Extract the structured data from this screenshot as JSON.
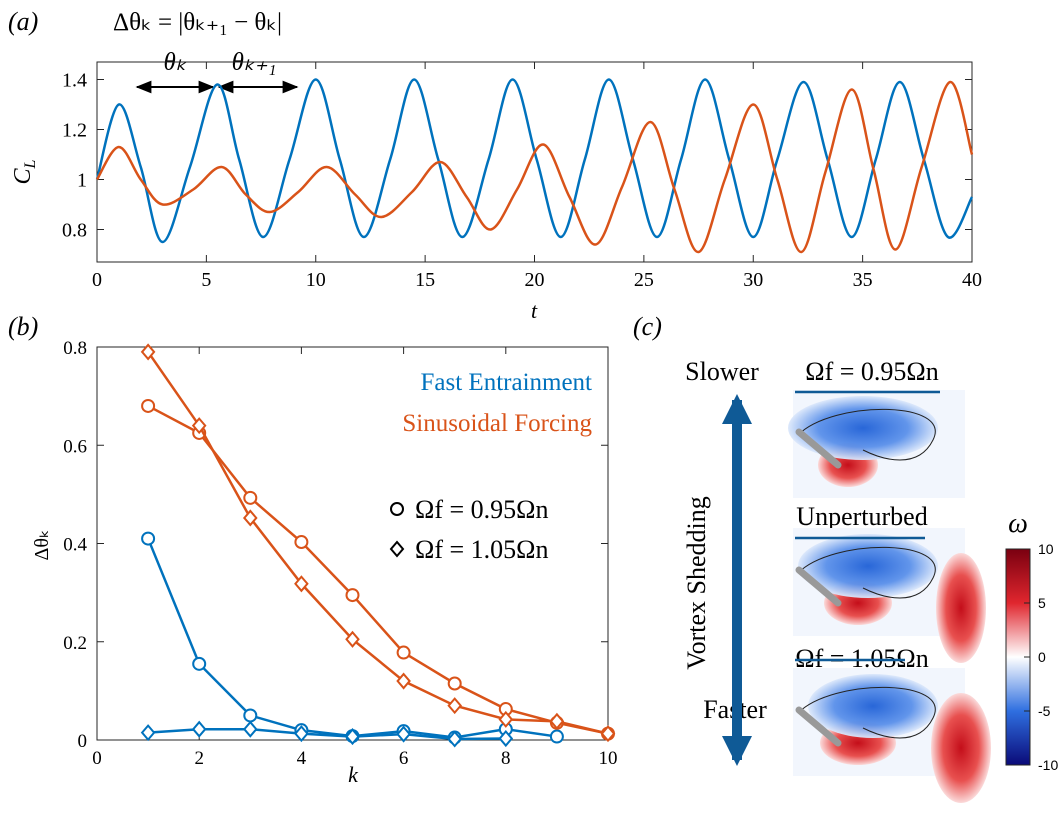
{
  "chart_data": [
    {
      "type": "line",
      "panel": "(a)",
      "annotation": "Δθₖ = |θₖ₊₁ − θₖ|",
      "arrow_labels": [
        "θₖ",
        "θₖ₊₁"
      ],
      "xlabel": "t",
      "ylabel": "C",
      "ylabel_sub": "L",
      "xlim": [
        0,
        40
      ],
      "xticks": [
        0,
        5,
        10,
        15,
        20,
        25,
        30,
        35,
        40
      ],
      "ylim": [
        0.67,
        1.47
      ],
      "yticks": [
        0.8,
        1,
        1.2,
        1.4
      ],
      "series": [
        {
          "color": "#0072bd",
          "x": [
            0,
            1,
            2,
            3,
            4.25,
            5.5,
            6.5,
            7.6,
            8.8,
            10,
            11.1,
            12.2,
            13.4,
            14.5,
            15.6,
            16.7,
            17.9,
            19,
            20.1,
            21.2,
            22.3,
            23.4,
            24.5,
            25.6,
            26.7,
            27.8,
            28.9,
            30,
            31.1,
            32.3,
            33.4,
            34.5,
            35.6,
            36.7,
            37.8,
            38.9,
            40
          ],
          "values": [
            1.0,
            1.3,
            1.05,
            0.75,
            1.05,
            1.38,
            1.08,
            0.77,
            1.08,
            1.4,
            1.08,
            0.77,
            1.08,
            1.4,
            1.08,
            0.77,
            1.08,
            1.4,
            1.08,
            0.77,
            1.08,
            1.4,
            1.08,
            0.77,
            1.08,
            1.4,
            1.08,
            0.77,
            1.08,
            1.39,
            1.08,
            0.77,
            1.08,
            1.39,
            1.08,
            0.77,
            0.93
          ]
        },
        {
          "color": "#d95319",
          "x": [
            0,
            1,
            2,
            3,
            4.4,
            5.7,
            6.8,
            7.9,
            9.2,
            10.5,
            11.8,
            13,
            14.4,
            15.7,
            16.9,
            18,
            19.2,
            20.4,
            21.6,
            22.8,
            24,
            25.3,
            26.4,
            27.5,
            28.7,
            30,
            31.1,
            32.2,
            33.3,
            34.5,
            35.5,
            36.5,
            37.7,
            39,
            40
          ],
          "values": [
            1.0,
            1.13,
            1.0,
            0.9,
            0.96,
            1.05,
            0.94,
            0.87,
            0.95,
            1.05,
            0.94,
            0.85,
            0.95,
            1.07,
            0.93,
            0.8,
            0.96,
            1.14,
            0.93,
            0.74,
            0.97,
            1.23,
            0.96,
            0.71,
            1.0,
            1.3,
            1.0,
            0.71,
            1.03,
            1.36,
            1.04,
            0.72,
            1.05,
            1.39,
            1.1
          ]
        }
      ]
    },
    {
      "type": "line-marker",
      "panel": "(b)",
      "xlabel": "k",
      "ylabel": "Δθₖ",
      "xlim": [
        0,
        10
      ],
      "xticks": [
        0,
        2,
        4,
        6,
        8,
        10
      ],
      "ylim": [
        0,
        0.8
      ],
      "yticks": [
        0,
        0.2,
        0.4,
        0.6,
        0.8
      ],
      "series": [
        {
          "name": "Fast Entrainment",
          "color": "#0072bd",
          "curves": [
            {
              "marker": "circle",
              "x": [
                1,
                2,
                3,
                4,
                5,
                6,
                7,
                8,
                9
              ],
              "values": [
                0.41,
                0.155,
                0.05,
                0.02,
                0.008,
                0.018,
                0.005,
                0.022,
                0.007
              ]
            },
            {
              "marker": "diamond",
              "x": [
                1,
                2,
                3,
                4,
                5,
                6,
                7,
                8
              ],
              "values": [
                0.015,
                0.022,
                0.022,
                0.013,
                0.007,
                0.012,
                0.002,
                0.003
              ]
            }
          ]
        },
        {
          "name": "Sinusoidal Forcing",
          "color": "#d95319",
          "curves": [
            {
              "marker": "circle",
              "x": [
                1,
                2,
                3,
                4,
                5,
                6,
                7,
                8,
                9,
                10
              ],
              "values": [
                0.68,
                0.625,
                0.493,
                0.403,
                0.295,
                0.178,
                0.115,
                0.063,
                0.035,
                0.013
              ]
            },
            {
              "marker": "diamond",
              "x": [
                1,
                2,
                3,
                4,
                5,
                6,
                7,
                8,
                9,
                10
              ],
              "values": [
                0.79,
                0.64,
                0.452,
                0.318,
                0.205,
                0.12,
                0.07,
                0.042,
                0.038,
                0.013
              ]
            }
          ]
        }
      ],
      "marker_legend": [
        {
          "label": "Ωf = 0.95Ωn",
          "marker": "circle"
        },
        {
          "label": "Ωf = 1.05Ωn",
          "marker": "diamond"
        }
      ]
    }
  ],
  "panel_c": {
    "panel": "(c)",
    "top": "Slower",
    "bottom": "Faster",
    "axis": "Vortex Shedding",
    "cases": [
      "Ωf = 0.95Ωn",
      "Unperturbed",
      "Ωf = 1.05Ωn"
    ],
    "colorbar": {
      "label": "ω",
      "lim": [
        -10,
        10
      ],
      "ticks": [
        10,
        5,
        0,
        -5,
        -10
      ]
    }
  }
}
